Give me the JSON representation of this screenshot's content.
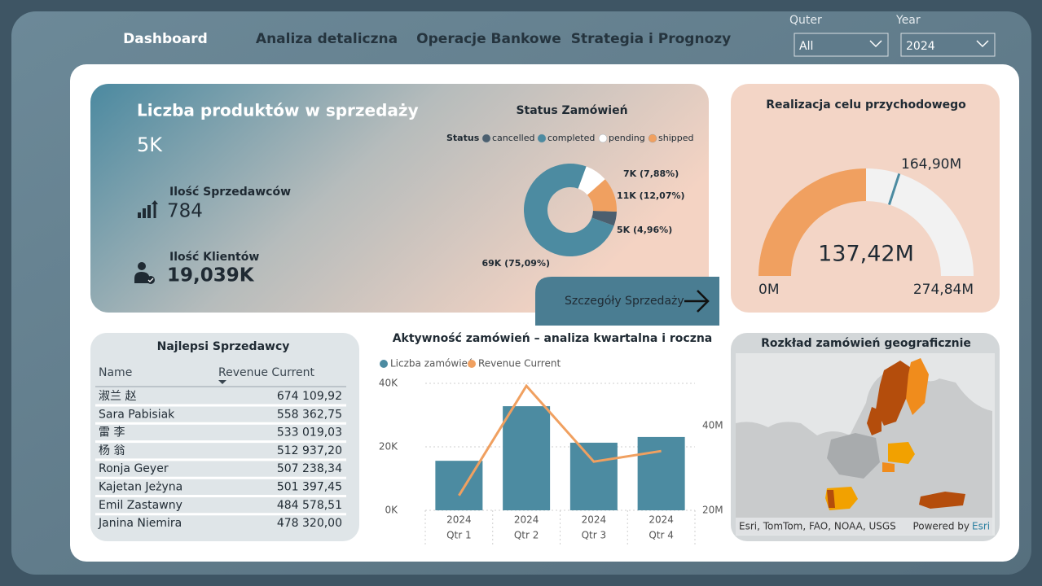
{
  "nav": [
    "Dashboard",
    "Analiza detaliczna",
    "Operacje Bankowe",
    "Strategia i Prognozy"
  ],
  "filters": [
    {
      "label": "Quter",
      "value": "All"
    },
    {
      "label": "Year",
      "value": "2024"
    }
  ],
  "kpi": {
    "title": "Liczba produktów w sprzedaży",
    "value": "5K",
    "sellers": {
      "label": "Ilość Sprzedawców",
      "value": "784"
    },
    "clients": {
      "label": "Ilość Klientów",
      "value": "19,039K"
    }
  },
  "button": "Szczegóły Sprzedaży",
  "chart_data": [
    {
      "type": "pie",
      "title": "Status Zamówień",
      "legend_title": "Status",
      "categories": [
        "cancelled",
        "completed",
        "pending",
        "shipped"
      ],
      "values": [
        4560,
        69010,
        7240,
        11090
      ],
      "value_labels": [
        "5K (4,96%)",
        "69K (75,09%)",
        "7K (7,88%)",
        "11K (12,07%)"
      ],
      "colors": [
        "#4b5f6f",
        "#4c8ba1",
        "#ffffff",
        "#f0a060"
      ]
    },
    {
      "type": "gauge",
      "title": "Realizacja celu przychodowego",
      "value": 137.42,
      "value_label": "137,42M",
      "target": 164.9,
      "target_label": "164,90M",
      "ylim": [
        0,
        274.84
      ],
      "yticks": [
        {
          "value": 0,
          "label": "0M"
        },
        {
          "value": 274.84,
          "label": "274,84M"
        }
      ],
      "color": "#f0a060",
      "track_color": "#f2f2f2",
      "target_color": "#4c8ba1"
    },
    {
      "type": "combo",
      "title": "Aktywność zamówień – analiza kwartalna i roczna",
      "categories": [
        "Qtr 1",
        "Qtr 2",
        "Qtr 3",
        "Qtr 4"
      ],
      "category_group": "2024",
      "series": [
        {
          "name": "Liczba zamówień",
          "color": "#4c8ba1",
          "kind": "bar",
          "values": [
            15600,
            32800,
            21300,
            23100
          ]
        },
        {
          "name": "Revenue Current",
          "color": "#f0a060",
          "kind": "line",
          "axis": "y2",
          "values": [
            23.5,
            49.4,
            31.5,
            34.0
          ]
        }
      ],
      "ylim": [
        0,
        40000
      ],
      "yticks": [
        {
          "value": 0,
          "label": "0K"
        },
        {
          "value": 20000,
          "label": "20K"
        },
        {
          "value": 40000,
          "label": "40K"
        }
      ],
      "y2lim": [
        20,
        50
      ],
      "y2ticks": [
        {
          "value": 20,
          "label": "20M"
        },
        {
          "value": 40,
          "label": "40M"
        }
      ],
      "grid": true
    }
  ],
  "table": {
    "title": "Najlepsi Sprzedawcy",
    "columns": [
      "Name",
      "Revenue Current"
    ],
    "rows": [
      [
        "淑兰 赵",
        "674 109,92"
      ],
      [
        "Sara Pabisiak",
        "558 362,75"
      ],
      [
        "雷 李",
        "533 019,03"
      ],
      [
        "杨 翁",
        "512 937,20"
      ],
      [
        "Ronja Geyer",
        "507 238,34"
      ],
      [
        "Kajetan Jeżyna",
        "501 397,45"
      ],
      [
        "Emil Zastawny",
        "484 578,51"
      ],
      [
        "Janina Niemira",
        "478 320,00"
      ]
    ]
  },
  "map": {
    "title": "Rozkład zamówień geograficznie",
    "attribution": "Esri, TomTom, FAO, NOAA, USGS",
    "powered_by": "Powered by",
    "provider": "Esri"
  }
}
